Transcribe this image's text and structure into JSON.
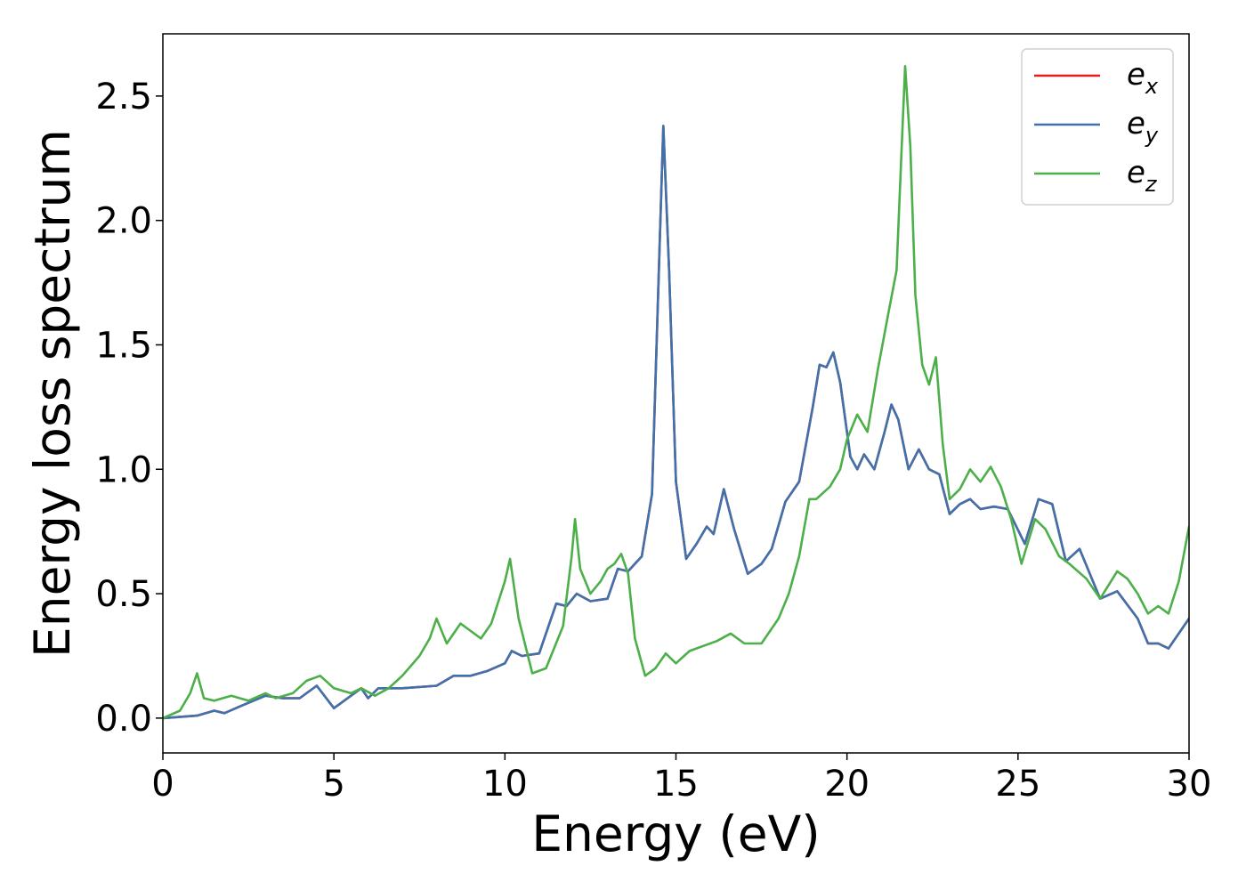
{
  "chart_data": {
    "type": "line",
    "title": "",
    "xlabel": "Energy (eV)",
    "ylabel": "Energy loss spectrum",
    "xlim": [
      0,
      30
    ],
    "ylim": [
      -0.14,
      2.75
    ],
    "xticks": [
      0,
      5,
      10,
      15,
      20,
      25,
      30
    ],
    "xtick_labels": [
      "0",
      "5",
      "10",
      "15",
      "20",
      "25",
      "30"
    ],
    "yticks": [
      0.0,
      0.5,
      1.0,
      1.5,
      2.0,
      2.5
    ],
    "ytick_labels": [
      "0.0",
      "0.5",
      "1.0",
      "1.5",
      "2.0",
      "2.5"
    ],
    "grid": false,
    "legend_position": "top-right",
    "series": [
      {
        "name": "e_x",
        "label_base": "e",
        "label_sub": "x",
        "color": "#e41a1c",
        "points": [
          [
            0,
            0
          ],
          [
            1,
            0.01
          ],
          [
            1.5,
            0.03
          ],
          [
            1.8,
            0.02
          ],
          [
            2.3,
            0.05
          ],
          [
            3.0,
            0.09
          ],
          [
            3.5,
            0.08
          ],
          [
            4.0,
            0.08
          ],
          [
            4.5,
            0.13
          ],
          [
            5.0,
            0.04
          ],
          [
            5.5,
            0.09
          ],
          [
            5.8,
            0.12
          ],
          [
            6.0,
            0.08
          ],
          [
            6.3,
            0.12
          ],
          [
            7.0,
            0.12
          ],
          [
            8.0,
            0.13
          ],
          [
            8.5,
            0.17
          ],
          [
            9.0,
            0.17
          ],
          [
            9.5,
            0.19
          ],
          [
            10.0,
            0.22
          ],
          [
            10.2,
            0.27
          ],
          [
            10.5,
            0.25
          ],
          [
            11.0,
            0.26
          ],
          [
            11.5,
            0.46
          ],
          [
            11.8,
            0.45
          ],
          [
            12.1,
            0.5
          ],
          [
            12.5,
            0.47
          ],
          [
            13.0,
            0.48
          ],
          [
            13.3,
            0.6
          ],
          [
            13.6,
            0.59
          ],
          [
            14.0,
            0.65
          ],
          [
            14.3,
            0.9
          ],
          [
            14.5,
            1.8
          ],
          [
            14.63,
            2.38
          ],
          [
            14.8,
            1.8
          ],
          [
            15.0,
            0.95
          ],
          [
            15.3,
            0.64
          ],
          [
            15.6,
            0.7
          ],
          [
            15.9,
            0.77
          ],
          [
            16.1,
            0.74
          ],
          [
            16.4,
            0.92
          ],
          [
            16.7,
            0.76
          ],
          [
            17.1,
            0.58
          ],
          [
            17.5,
            0.62
          ],
          [
            17.8,
            0.68
          ],
          [
            18.2,
            0.87
          ],
          [
            18.6,
            0.95
          ],
          [
            19.0,
            1.25
          ],
          [
            19.2,
            1.42
          ],
          [
            19.4,
            1.41
          ],
          [
            19.6,
            1.47
          ],
          [
            19.8,
            1.35
          ],
          [
            20.1,
            1.05
          ],
          [
            20.3,
            1.0
          ],
          [
            20.5,
            1.06
          ],
          [
            20.8,
            1.0
          ],
          [
            21.1,
            1.15
          ],
          [
            21.3,
            1.26
          ],
          [
            21.5,
            1.2
          ],
          [
            21.8,
            1.0
          ],
          [
            22.1,
            1.08
          ],
          [
            22.4,
            1.0
          ],
          [
            22.7,
            0.98
          ],
          [
            23.0,
            0.82
          ],
          [
            23.3,
            0.86
          ],
          [
            23.6,
            0.88
          ],
          [
            23.9,
            0.84
          ],
          [
            24.3,
            0.85
          ],
          [
            24.7,
            0.84
          ],
          [
            25.2,
            0.7
          ],
          [
            25.6,
            0.88
          ],
          [
            26.0,
            0.86
          ],
          [
            26.4,
            0.63
          ],
          [
            26.8,
            0.68
          ],
          [
            27.4,
            0.48
          ],
          [
            27.9,
            0.51
          ],
          [
            28.5,
            0.4
          ],
          [
            28.8,
            0.3
          ],
          [
            29.1,
            0.3
          ],
          [
            29.4,
            0.28
          ],
          [
            30.0,
            0.4
          ]
        ]
      },
      {
        "name": "e_y",
        "label_base": "e",
        "label_sub": "y",
        "color": "#3f72ac",
        "points": [
          [
            0,
            0
          ],
          [
            1,
            0.01
          ],
          [
            1.5,
            0.03
          ],
          [
            1.8,
            0.02
          ],
          [
            2.3,
            0.05
          ],
          [
            3.0,
            0.09
          ],
          [
            3.5,
            0.08
          ],
          [
            4.0,
            0.08
          ],
          [
            4.5,
            0.13
          ],
          [
            5.0,
            0.04
          ],
          [
            5.5,
            0.09
          ],
          [
            5.8,
            0.12
          ],
          [
            6.0,
            0.08
          ],
          [
            6.3,
            0.12
          ],
          [
            7.0,
            0.12
          ],
          [
            8.0,
            0.13
          ],
          [
            8.5,
            0.17
          ],
          [
            9.0,
            0.17
          ],
          [
            9.5,
            0.19
          ],
          [
            10.0,
            0.22
          ],
          [
            10.2,
            0.27
          ],
          [
            10.5,
            0.25
          ],
          [
            11.0,
            0.26
          ],
          [
            11.5,
            0.46
          ],
          [
            11.8,
            0.45
          ],
          [
            12.1,
            0.5
          ],
          [
            12.5,
            0.47
          ],
          [
            13.0,
            0.48
          ],
          [
            13.3,
            0.6
          ],
          [
            13.6,
            0.59
          ],
          [
            14.0,
            0.65
          ],
          [
            14.3,
            0.9
          ],
          [
            14.5,
            1.8
          ],
          [
            14.63,
            2.38
          ],
          [
            14.8,
            1.8
          ],
          [
            15.0,
            0.95
          ],
          [
            15.3,
            0.64
          ],
          [
            15.6,
            0.7
          ],
          [
            15.9,
            0.77
          ],
          [
            16.1,
            0.74
          ],
          [
            16.4,
            0.92
          ],
          [
            16.7,
            0.76
          ],
          [
            17.1,
            0.58
          ],
          [
            17.5,
            0.62
          ],
          [
            17.8,
            0.68
          ],
          [
            18.2,
            0.87
          ],
          [
            18.6,
            0.95
          ],
          [
            19.0,
            1.25
          ],
          [
            19.2,
            1.42
          ],
          [
            19.4,
            1.41
          ],
          [
            19.6,
            1.47
          ],
          [
            19.8,
            1.35
          ],
          [
            20.1,
            1.05
          ],
          [
            20.3,
            1.0
          ],
          [
            20.5,
            1.06
          ],
          [
            20.8,
            1.0
          ],
          [
            21.1,
            1.15
          ],
          [
            21.3,
            1.26
          ],
          [
            21.5,
            1.2
          ],
          [
            21.8,
            1.0
          ],
          [
            22.1,
            1.08
          ],
          [
            22.4,
            1.0
          ],
          [
            22.7,
            0.98
          ],
          [
            23.0,
            0.82
          ],
          [
            23.3,
            0.86
          ],
          [
            23.6,
            0.88
          ],
          [
            23.9,
            0.84
          ],
          [
            24.3,
            0.85
          ],
          [
            24.7,
            0.84
          ],
          [
            25.2,
            0.7
          ],
          [
            25.6,
            0.88
          ],
          [
            26.0,
            0.86
          ],
          [
            26.4,
            0.63
          ],
          [
            26.8,
            0.68
          ],
          [
            27.4,
            0.48
          ],
          [
            27.9,
            0.51
          ],
          [
            28.5,
            0.4
          ],
          [
            28.8,
            0.3
          ],
          [
            29.1,
            0.3
          ],
          [
            29.4,
            0.28
          ],
          [
            30.0,
            0.4
          ]
        ]
      },
      {
        "name": "e_z",
        "label_base": "e",
        "label_sub": "z",
        "color": "#4daf4a",
        "points": [
          [
            0,
            0
          ],
          [
            0.5,
            0.03
          ],
          [
            0.8,
            0.1
          ],
          [
            1.0,
            0.18
          ],
          [
            1.2,
            0.08
          ],
          [
            1.5,
            0.07
          ],
          [
            2.0,
            0.09
          ],
          [
            2.5,
            0.07
          ],
          [
            3.0,
            0.1
          ],
          [
            3.3,
            0.08
          ],
          [
            3.8,
            0.1
          ],
          [
            4.2,
            0.15
          ],
          [
            4.6,
            0.17
          ],
          [
            5.0,
            0.12
          ],
          [
            5.5,
            0.1
          ],
          [
            5.8,
            0.12
          ],
          [
            6.2,
            0.09
          ],
          [
            6.6,
            0.12
          ],
          [
            7.0,
            0.17
          ],
          [
            7.5,
            0.25
          ],
          [
            7.8,
            0.32
          ],
          [
            8.0,
            0.4
          ],
          [
            8.3,
            0.3
          ],
          [
            8.7,
            0.38
          ],
          [
            9.0,
            0.35
          ],
          [
            9.3,
            0.32
          ],
          [
            9.6,
            0.38
          ],
          [
            10.0,
            0.55
          ],
          [
            10.15,
            0.64
          ],
          [
            10.4,
            0.4
          ],
          [
            10.8,
            0.18
          ],
          [
            11.2,
            0.2
          ],
          [
            11.7,
            0.37
          ],
          [
            11.95,
            0.65
          ],
          [
            12.05,
            0.8
          ],
          [
            12.2,
            0.6
          ],
          [
            12.5,
            0.5
          ],
          [
            12.8,
            0.55
          ],
          [
            13.0,
            0.6
          ],
          [
            13.2,
            0.62
          ],
          [
            13.4,
            0.66
          ],
          [
            13.6,
            0.58
          ],
          [
            13.8,
            0.32
          ],
          [
            14.1,
            0.17
          ],
          [
            14.4,
            0.2
          ],
          [
            14.7,
            0.26
          ],
          [
            15.0,
            0.22
          ],
          [
            15.4,
            0.27
          ],
          [
            15.8,
            0.29
          ],
          [
            16.2,
            0.31
          ],
          [
            16.6,
            0.34
          ],
          [
            17.0,
            0.3
          ],
          [
            17.5,
            0.3
          ],
          [
            18.0,
            0.4
          ],
          [
            18.3,
            0.5
          ],
          [
            18.6,
            0.65
          ],
          [
            18.9,
            0.88
          ],
          [
            19.1,
            0.88
          ],
          [
            19.5,
            0.93
          ],
          [
            19.8,
            1.0
          ],
          [
            20.0,
            1.12
          ],
          [
            20.3,
            1.22
          ],
          [
            20.6,
            1.15
          ],
          [
            20.9,
            1.4
          ],
          [
            21.2,
            1.62
          ],
          [
            21.45,
            1.8
          ],
          [
            21.6,
            2.3
          ],
          [
            21.7,
            2.62
          ],
          [
            21.85,
            2.3
          ],
          [
            22.0,
            1.7
          ],
          [
            22.2,
            1.42
          ],
          [
            22.4,
            1.34
          ],
          [
            22.6,
            1.45
          ],
          [
            22.8,
            1.1
          ],
          [
            23.0,
            0.88
          ],
          [
            23.3,
            0.92
          ],
          [
            23.6,
            1.0
          ],
          [
            23.9,
            0.95
          ],
          [
            24.2,
            1.01
          ],
          [
            24.5,
            0.93
          ],
          [
            24.8,
            0.8
          ],
          [
            25.1,
            0.62
          ],
          [
            25.5,
            0.8
          ],
          [
            25.8,
            0.76
          ],
          [
            26.2,
            0.65
          ],
          [
            26.5,
            0.62
          ],
          [
            27.0,
            0.56
          ],
          [
            27.4,
            0.48
          ],
          [
            27.9,
            0.59
          ],
          [
            28.2,
            0.56
          ],
          [
            28.5,
            0.5
          ],
          [
            28.8,
            0.42
          ],
          [
            29.1,
            0.45
          ],
          [
            29.4,
            0.42
          ],
          [
            29.7,
            0.55
          ],
          [
            30.0,
            0.77
          ]
        ]
      }
    ]
  }
}
